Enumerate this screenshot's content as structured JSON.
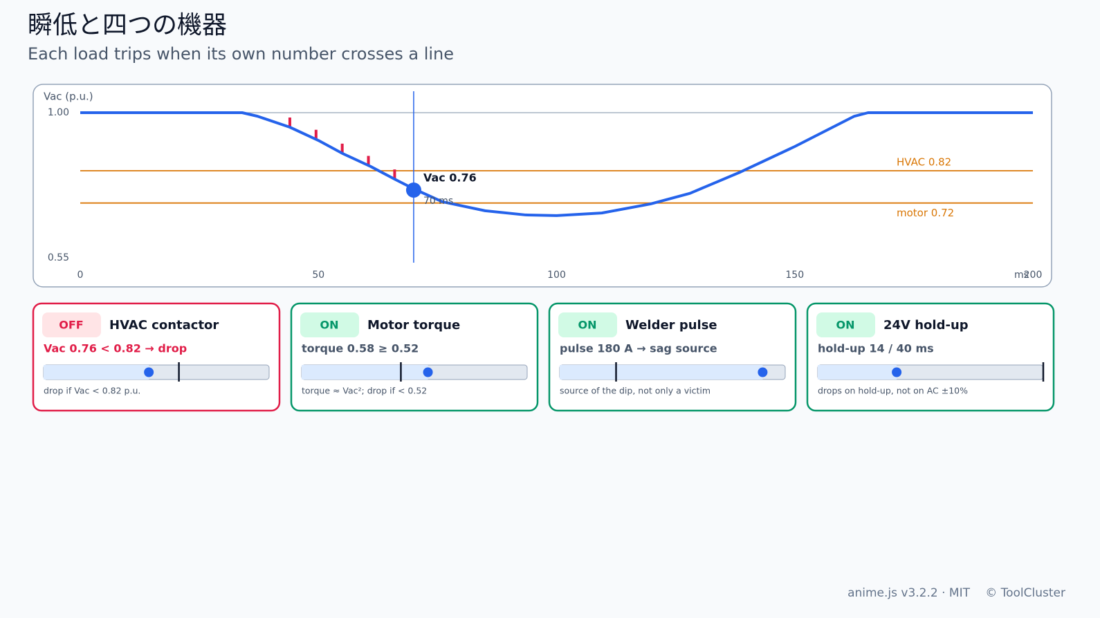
{
  "header": {
    "title": "瞬低と四つの機器",
    "subtitle": "Each load trips when its own number crosses a line"
  },
  "chart_data": {
    "type": "line",
    "ylabel": "Vac (p.u.)",
    "xunit": "ms",
    "xlim": [
      0,
      200
    ],
    "xticks": [
      0,
      50,
      100,
      150,
      200
    ],
    "ylim": [
      0.55,
      1.0
    ],
    "yticks": [
      {
        "value": 1.0,
        "label": "1.00"
      },
      0.55
    ],
    "grid": true,
    "series": [
      {
        "color": "#2563eb",
        "x": [
          0,
          34,
          37.2,
          44,
          50,
          55,
          61,
          66,
          70,
          76,
          85,
          93.5,
          100,
          109.5,
          119.7,
          128,
          138.6,
          150,
          162.5,
          165.4,
          200
        ],
        "values": [
          1.0,
          1.0,
          0.989,
          0.955,
          0.914,
          0.874,
          0.833,
          0.794,
          0.764,
          0.724,
          0.696,
          0.683,
          0.681,
          0.689,
          0.717,
          0.75,
          0.816,
          0.895,
          0.989,
          1.0,
          1.0
        ]
      },
      {
        "color": "#e11d48",
        "x": [
          44,
          49.5,
          55,
          60.5,
          66
        ],
        "values": [
          0.955,
          0.917,
          0.874,
          0.836,
          0.794
        ]
      }
    ],
    "thresholds": [
      {
        "label": "HVAC 0.82",
        "value": 0.82,
        "color": "#d97706"
      },
      {
        "label": "motor 0.72",
        "value": 0.72,
        "color": "#d97706"
      }
    ],
    "cursor": {
      "x": 70,
      "value": 0.76,
      "label": "Vac 0.76",
      "x_label": "70 ms",
      "color": "#2563eb"
    }
  },
  "cards": [
    {
      "status": "OFF",
      "tripped": true,
      "name": "HVAC contactor",
      "readout": "Vac 0.76 < 0.82 → drop",
      "value": 0.76,
      "threshold": 0.82,
      "range": [
        0.55,
        1.0
      ],
      "note": "drop if Vac < 0.82 p.u."
    },
    {
      "status": "ON",
      "tripped": false,
      "name": "Motor torque",
      "readout": "torque 0.58 ≥ 0.52",
      "value": 0.58,
      "threshold": 0.52,
      "range": [
        0.3,
        0.8
      ],
      "note": "torque ≈ Vac²; drop if < 0.52"
    },
    {
      "status": "ON",
      "tripped": false,
      "name": "Welder pulse",
      "readout": "pulse 180 A → sag source",
      "value": 180,
      "threshold": 50,
      "range": [
        0,
        200
      ],
      "note": "source of the dip, not only a victim"
    },
    {
      "status": "ON",
      "tripped": false,
      "name": "24V hold-up",
      "readout": "hold-up 14 / 40 ms",
      "value": 14,
      "threshold": 40,
      "range": [
        0,
        40
      ],
      "note": "drops on hold-up, not on AC ±10%"
    }
  ],
  "footer": {
    "library": "anime.js v3.2.2 · MIT",
    "credit": "© ToolCluster"
  }
}
